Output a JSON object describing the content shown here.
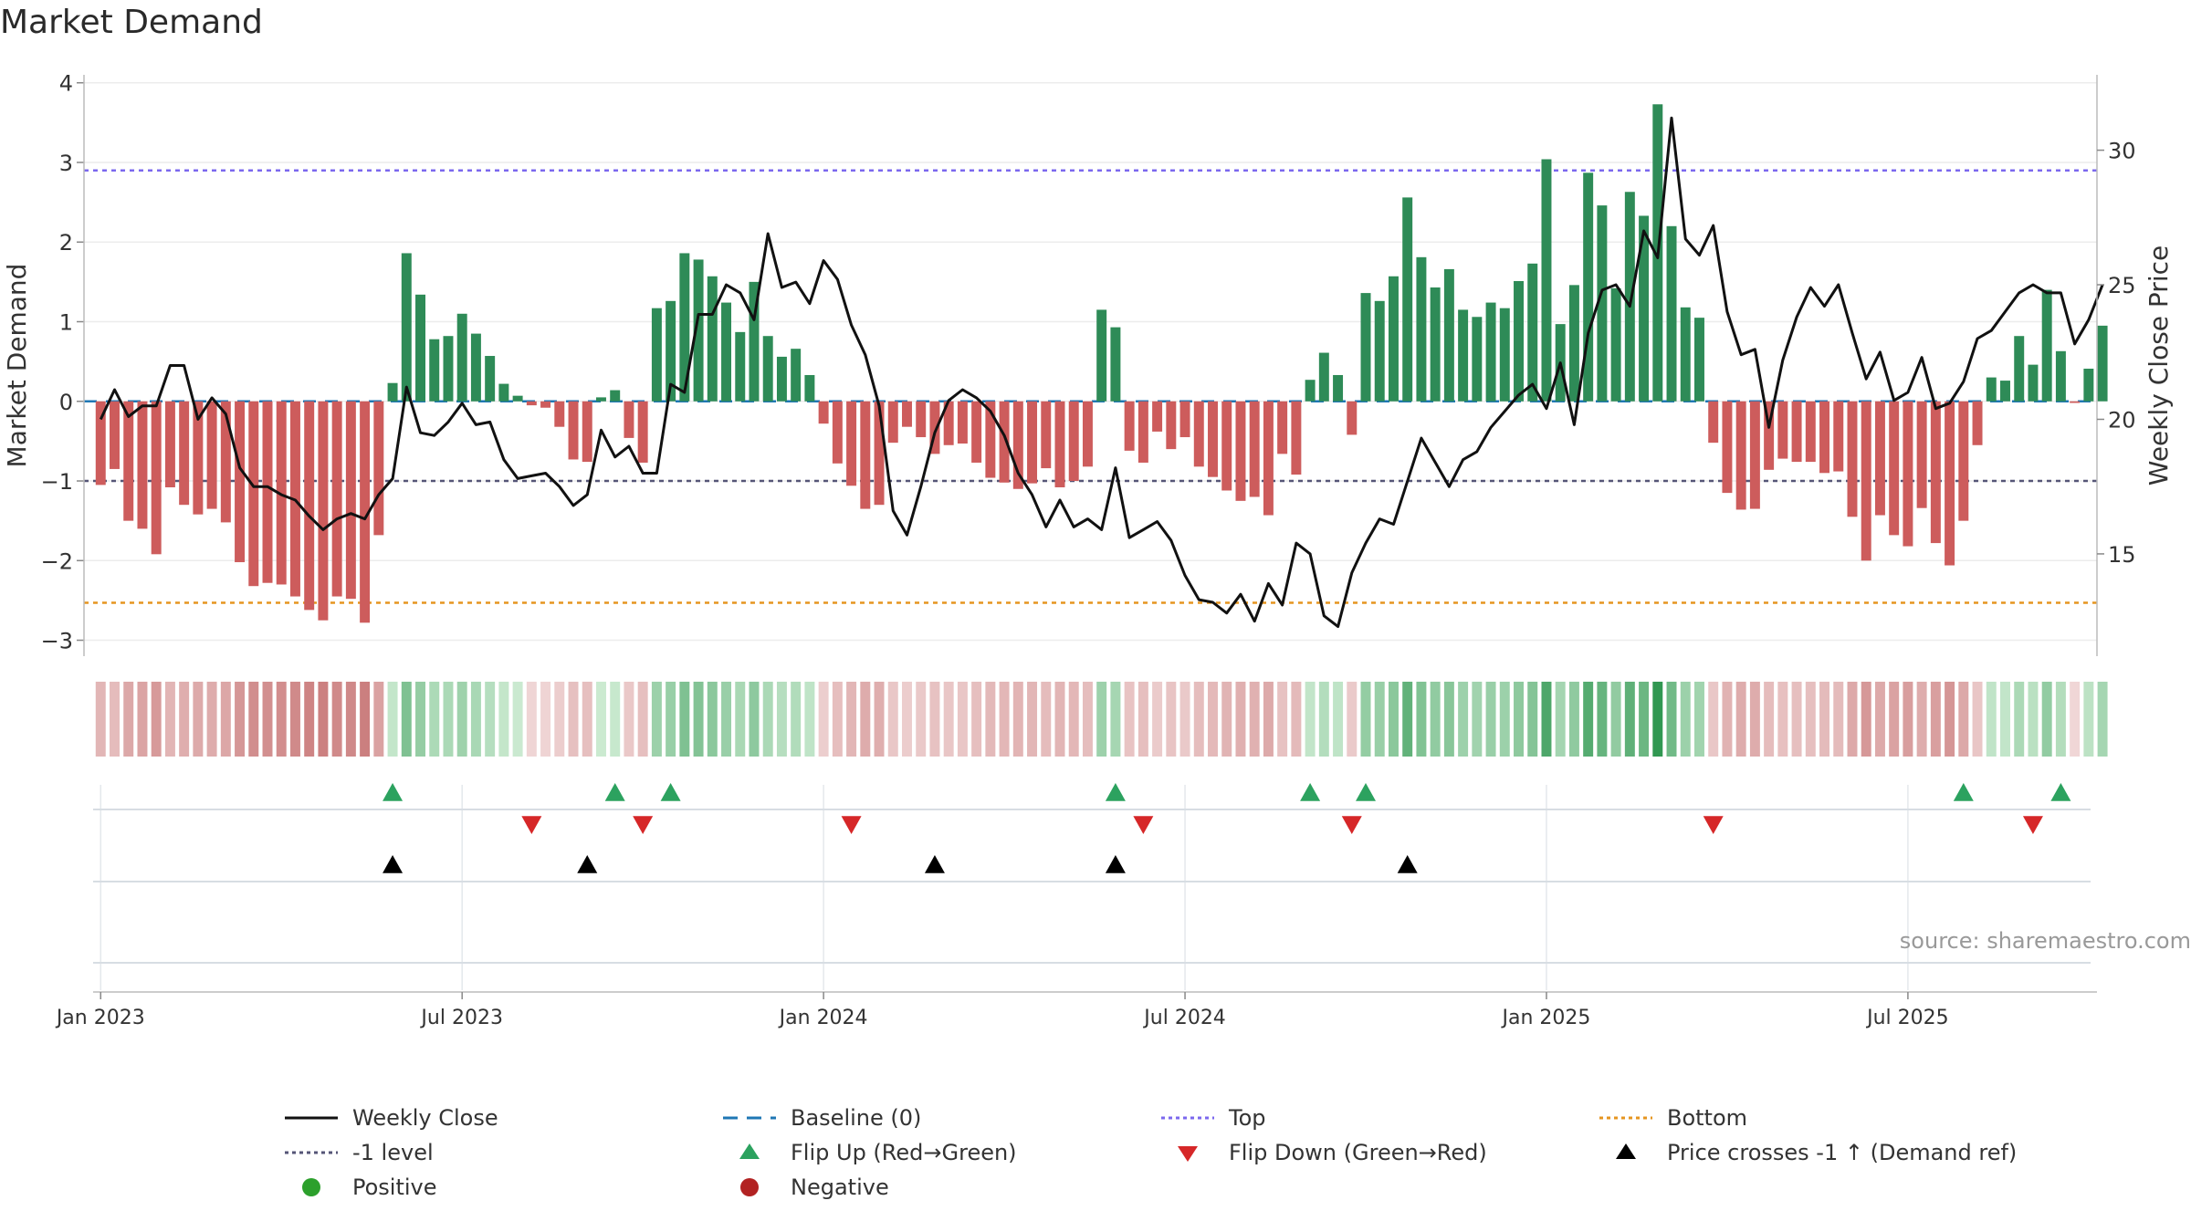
{
  "title": "Market Demand",
  "source": "source: sharemaestro.com",
  "colors": {
    "positive_bar": "#2e8b57",
    "negative_bar": "#cd5c5c",
    "close_line": "#111111",
    "baseline": "#1f77b4",
    "top_line": "#7b68ee",
    "bottom_line": "#e69520",
    "minus1_line": "#555577",
    "flip_up": "#2ca25f",
    "flip_down": "#d62728",
    "cross": "#000000",
    "legend_positive": "#2ca02c",
    "legend_negative": "#b22222"
  },
  "legend": {
    "weekly_close": "Weekly Close",
    "baseline": "Baseline (0)",
    "top": "Top",
    "bottom": "Bottom",
    "minus1": "-1 level",
    "flip_up": "Flip Up (Red→Green)",
    "flip_down": "Flip Down (Green→Red)",
    "price_cross": "Price crosses -1 ↑ (Demand ref)",
    "positive": "Positive",
    "negative": "Negative"
  },
  "chart_data": {
    "type": "bar",
    "title": "Market Demand",
    "ylabel": "Market Demand",
    "y2label": "Weekly Close Price",
    "ylim": [
      -3.2,
      4.1
    ],
    "y2lim": [
      11.2,
      32.8
    ],
    "yticks": [
      4,
      3,
      2,
      1,
      0,
      -1,
      -2,
      -3
    ],
    "ytick_labels": [
      "4",
      "3",
      "2",
      "1",
      "0",
      "−1",
      "−2",
      "−3"
    ],
    "y2ticks": [
      30,
      25,
      20,
      15
    ],
    "y2tick_labels": [
      "30",
      "25",
      "20",
      "15"
    ],
    "xlim_weeks": [
      -1.2,
      143.6
    ],
    "x_ticks": [
      {
        "week": 0,
        "label": "Jan 2023"
      },
      {
        "week": 26,
        "label": "Jul 2023"
      },
      {
        "week": 52,
        "label": "Jan 2024"
      },
      {
        "week": 78,
        "label": "Jul 2024"
      },
      {
        "week": 104,
        "label": "Jan 2025"
      },
      {
        "week": 130,
        "label": "Jul 2025"
      }
    ],
    "reference_lines": {
      "top": 2.9,
      "bottom": -2.53,
      "minus1": -1.0,
      "baseline": 0
    },
    "series": [
      {
        "name": "Market Demand",
        "values": [
          -1.05,
          -0.85,
          -1.5,
          -1.6,
          -1.92,
          -1.08,
          -1.3,
          -1.42,
          -1.35,
          -1.52,
          -2.02,
          -2.32,
          -2.28,
          -2.3,
          -2.45,
          -2.62,
          -2.75,
          -2.45,
          -2.48,
          -2.78,
          -1.68,
          0.23,
          1.86,
          1.34,
          0.78,
          0.82,
          1.1,
          0.85,
          0.57,
          0.22,
          0.07,
          -0.05,
          -0.08,
          -0.32,
          -0.73,
          -0.76,
          0.05,
          0.14,
          -0.46,
          -0.77,
          1.17,
          1.26,
          1.86,
          1.78,
          1.57,
          1.24,
          0.87,
          1.5,
          0.82,
          0.56,
          0.66,
          0.33,
          -0.28,
          -0.78,
          -1.06,
          -1.35,
          -1.3,
          -0.52,
          -0.32,
          -0.45,
          -0.66,
          -0.55,
          -0.53,
          -0.77,
          -0.96,
          -1.02,
          -1.1,
          -1.03,
          -0.84,
          -1.08,
          -1.0,
          -0.82,
          1.15,
          0.93,
          -0.62,
          -0.77,
          -0.38,
          -0.6,
          -0.45,
          -0.82,
          -0.95,
          -1.12,
          -1.25,
          -1.2,
          -1.43,
          -0.66,
          -0.92,
          0.27,
          0.61,
          0.33,
          -0.42,
          1.36,
          1.26,
          1.57,
          2.56,
          1.81,
          1.43,
          1.66,
          1.15,
          1.06,
          1.24,
          1.17,
          1.51,
          1.73,
          3.04,
          0.97,
          1.46,
          2.87,
          2.46,
          1.42,
          2.63,
          2.33,
          3.73,
          2.2,
          1.18,
          1.05,
          -0.52,
          -1.15,
          -1.36,
          -1.35,
          -0.86,
          -0.72,
          -0.76,
          -0.76,
          -0.9,
          -0.88,
          -1.45,
          -2.0,
          -1.43,
          -1.68,
          -1.82,
          -1.34,
          -1.78,
          -2.06,
          -1.5,
          -0.55,
          0.3,
          0.26,
          0.82,
          0.46,
          1.4,
          0.63,
          -0.02,
          0.41,
          0.95
        ]
      },
      {
        "name": "Weekly Close",
        "values": [
          20.0,
          21.1,
          20.1,
          20.5,
          20.5,
          22.0,
          22.0,
          20.0,
          20.8,
          20.2,
          18.2,
          17.5,
          17.5,
          17.2,
          17.0,
          16.4,
          15.9,
          16.3,
          16.5,
          16.3,
          17.2,
          17.8,
          21.2,
          19.5,
          19.4,
          19.9,
          20.6,
          19.8,
          19.9,
          18.5,
          17.8,
          17.9,
          18.0,
          17.5,
          16.8,
          17.2,
          19.6,
          18.6,
          19.0,
          18.0,
          18.0,
          21.3,
          21.0,
          23.9,
          23.9,
          25.0,
          24.7,
          23.7,
          26.9,
          24.9,
          25.1,
          24.3,
          25.9,
          25.2,
          23.5,
          22.4,
          20.5,
          16.6,
          15.7,
          17.5,
          19.5,
          20.7,
          21.1,
          20.8,
          20.3,
          19.4,
          18.0,
          17.2,
          16.0,
          17.0,
          16.0,
          16.3,
          15.9,
          18.2,
          15.6,
          15.9,
          16.2,
          15.5,
          14.2,
          13.3,
          13.2,
          12.8,
          13.5,
          12.5,
          13.9,
          13.1,
          15.4,
          15.0,
          12.7,
          12.3,
          14.3,
          15.4,
          16.3,
          16.1,
          17.7,
          19.3,
          18.4,
          17.5,
          18.5,
          18.8,
          19.7,
          20.3,
          20.9,
          21.3,
          20.4,
          22.1,
          19.8,
          23.2,
          24.8,
          25.0,
          24.2,
          27.0,
          26.0,
          31.2,
          26.7,
          26.1,
          27.2,
          24.0,
          22.4,
          22.6,
          19.7,
          22.2,
          23.8,
          24.9,
          24.2,
          25.0,
          23.2,
          21.5,
          22.5,
          20.7,
          21.0,
          22.3,
          20.4,
          20.6,
          21.4,
          23.0,
          23.3,
          24.0,
          24.7,
          25.0,
          24.7,
          24.7,
          22.8,
          23.7,
          25.0
        ]
      }
    ],
    "heat_strip": "colored cell per week: green shades for positive demand, red shades for negative",
    "flip_up_weeks": [
      21,
      37,
      41,
      73,
      87,
      91,
      134,
      141
    ],
    "flip_down_weeks": [
      31,
      39,
      54,
      75,
      90,
      116,
      139
    ],
    "price_cross_weeks": [
      21,
      35,
      60,
      73,
      94
    ],
    "legend_entries": [
      "Weekly Close",
      "Baseline (0)",
      "Top",
      "Bottom",
      "-1 level",
      "Flip Up (Red→Green)",
      "Flip Down (Green→Red)",
      "Price crosses -1 ↑ (Demand ref)",
      "Positive",
      "Negative"
    ]
  }
}
